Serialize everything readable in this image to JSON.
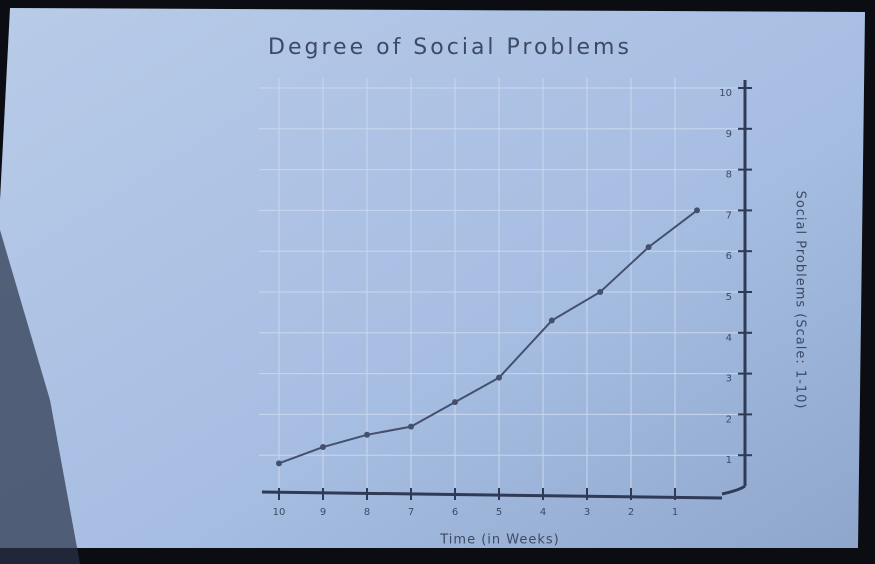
{
  "chart_data": {
    "type": "line",
    "title": "Degree of Social Problems",
    "x_label": "Time (in Weeks)",
    "y_label": "Social Problems (Scale: 1-10)",
    "x": [
      0.5,
      1.6,
      2.7,
      3.8,
      5,
      6,
      7,
      8,
      9,
      10
    ],
    "series": [
      {
        "color": "#44506e",
        "values": [
          7,
          6.1,
          5,
          4.3,
          2.9,
          2.3,
          1.7,
          1.5,
          1.2,
          0.8
        ]
      }
    ],
    "xlim": [
      0,
      10
    ],
    "xticks": [
      1,
      2,
      3,
      4,
      5,
      6,
      7,
      8,
      9,
      10
    ],
    "ylim": [
      0,
      10
    ],
    "yticks": [
      1,
      2,
      3,
      4,
      5,
      6,
      7,
      8,
      9,
      10
    ],
    "grid": true
  }
}
